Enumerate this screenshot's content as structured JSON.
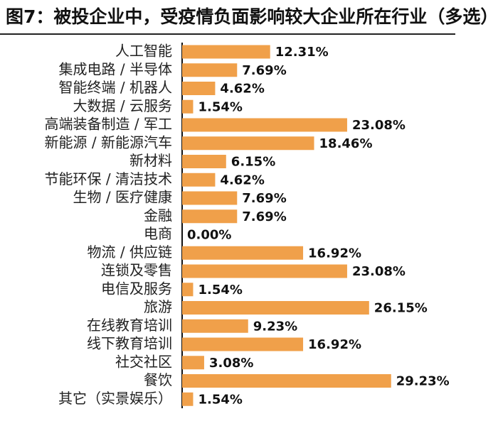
{
  "title": "图7：被投企业中，受疫情负面影响较大企业所在行业（多选）",
  "colors": {
    "bar": "#F0A04A",
    "axis": "#111111",
    "text": "#222222",
    "background": "#FFFFFF"
  },
  "chart_data": {
    "type": "bar",
    "orientation": "horizontal",
    "title": "图7：被投企业中，受疫情负面影响较大企业所在行业（多选）",
    "xlabel": "",
    "ylabel": "",
    "grid": false,
    "legend": "none",
    "xlim": [
      0,
      30
    ],
    "categories": [
      "人工智能",
      "集成电路 / 半导体",
      "智能终端 / 机器人",
      "大数据 / 云服务",
      "高端装备制造 / 军工",
      "新能源 / 新能源汽车",
      "新材料",
      "节能环保 / 清洁技术",
      "生物 / 医疗健康",
      "金融",
      "电商",
      "物流 / 供应链",
      "连锁及零售",
      "电信及服务",
      "旅游",
      "在线教育培训",
      "线下教育培训",
      "社交社区",
      "餐饮",
      "其它（实景娱乐）"
    ],
    "values": [
      12.31,
      7.69,
      4.62,
      1.54,
      23.08,
      18.46,
      6.15,
      4.62,
      7.69,
      7.69,
      0.0,
      16.92,
      23.08,
      1.54,
      26.15,
      9.23,
      16.92,
      3.08,
      29.23,
      1.54
    ],
    "value_labels": [
      "12.31%",
      "7.69%",
      "4.62%",
      "1.54%",
      "23.08%",
      "18.46%",
      "6.15%",
      "4.62%",
      "7.69%",
      "7.69%",
      "0.00%",
      "16.92%",
      "23.08%",
      "1.54%",
      "26.15%",
      "9.23%",
      "16.92%",
      "3.08%",
      "29.23%",
      "1.54%"
    ]
  }
}
